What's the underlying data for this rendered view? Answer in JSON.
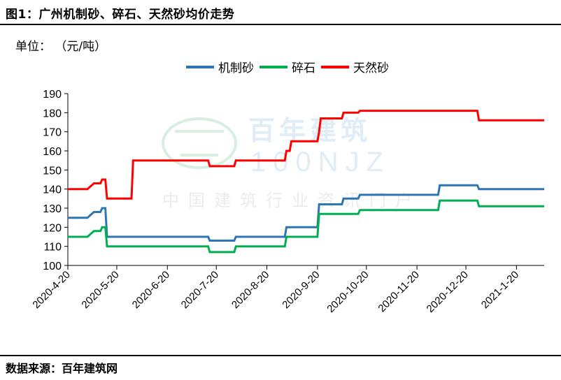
{
  "header": {
    "title": "图1：广州机制砂、碎石、天然砂均价走势"
  },
  "unit_label": "单位：  （元/吨）",
  "footer": {
    "source": "数据来源：百年建筑网"
  },
  "watermark": {
    "logo_text": "百年建筑",
    "code": "100NJZ",
    "subtitle": "中国建筑行业资讯门户"
  },
  "chart_data": {
    "type": "line",
    "xlabel": "",
    "ylabel": "",
    "ylim": [
      100,
      190
    ],
    "yticks": [
      100,
      110,
      120,
      130,
      140,
      150,
      160,
      170,
      180,
      190
    ],
    "xlim": [
      "2020-04-20",
      "2021-02-06"
    ],
    "xticks": [
      "2020-4-20",
      "2020-5-20",
      "2020-6-20",
      "2020-7-20",
      "2020-8-20",
      "2020-9-20",
      "2020-10-20",
      "2020-11-20",
      "2020-12-20",
      "2021-1-20"
    ],
    "grid": false,
    "legend_position": "top-center",
    "series": [
      {
        "name": "机制砂",
        "color": "#2e75b6",
        "points": [
          [
            "2020-04-20",
            125
          ],
          [
            "2020-05-02",
            125
          ],
          [
            "2020-05-06",
            128
          ],
          [
            "2020-05-10",
            128
          ],
          [
            "2020-05-11",
            130
          ],
          [
            "2020-05-13",
            130
          ],
          [
            "2020-05-14",
            115
          ],
          [
            "2020-07-15",
            115
          ],
          [
            "2020-07-16",
            113
          ],
          [
            "2020-07-31",
            113
          ],
          [
            "2020-08-01",
            115
          ],
          [
            "2020-08-31",
            115
          ],
          [
            "2020-09-01",
            120
          ],
          [
            "2020-09-20",
            120
          ],
          [
            "2020-09-21",
            132
          ],
          [
            "2020-10-05",
            132
          ],
          [
            "2020-10-06",
            135
          ],
          [
            "2020-10-15",
            135
          ],
          [
            "2020-10-16",
            137
          ],
          [
            "2020-12-03",
            137
          ],
          [
            "2020-12-04",
            142
          ],
          [
            "2020-12-27",
            142
          ],
          [
            "2020-12-28",
            140
          ],
          [
            "2021-02-06",
            140
          ]
        ]
      },
      {
        "name": "碎石",
        "color": "#00b050",
        "points": [
          [
            "2020-04-20",
            115
          ],
          [
            "2020-05-02",
            115
          ],
          [
            "2020-05-06",
            118
          ],
          [
            "2020-05-10",
            118
          ],
          [
            "2020-05-11",
            120
          ],
          [
            "2020-05-13",
            120
          ],
          [
            "2020-05-14",
            110
          ],
          [
            "2020-07-15",
            110
          ],
          [
            "2020-07-16",
            107
          ],
          [
            "2020-07-31",
            107
          ],
          [
            "2020-08-01",
            110
          ],
          [
            "2020-08-31",
            110
          ],
          [
            "2020-09-01",
            115
          ],
          [
            "2020-09-20",
            115
          ],
          [
            "2020-09-21",
            127
          ],
          [
            "2020-10-15",
            127
          ],
          [
            "2020-10-16",
            129
          ],
          [
            "2020-12-03",
            129
          ],
          [
            "2020-12-04",
            134
          ],
          [
            "2020-12-27",
            134
          ],
          [
            "2020-12-28",
            131
          ],
          [
            "2021-02-06",
            131
          ]
        ]
      },
      {
        "name": "天然砂",
        "color": "#ff0000",
        "points": [
          [
            "2020-04-20",
            140
          ],
          [
            "2020-05-02",
            140
          ],
          [
            "2020-05-06",
            143
          ],
          [
            "2020-05-10",
            143
          ],
          [
            "2020-05-11",
            145
          ],
          [
            "2020-05-13",
            145
          ],
          [
            "2020-05-14",
            135
          ],
          [
            "2020-05-29",
            135
          ],
          [
            "2020-05-30",
            155
          ],
          [
            "2020-07-15",
            155
          ],
          [
            "2020-07-16",
            152
          ],
          [
            "2020-07-31",
            152
          ],
          [
            "2020-08-01",
            155
          ],
          [
            "2020-08-31",
            155
          ],
          [
            "2020-09-01",
            160
          ],
          [
            "2020-09-03",
            160
          ],
          [
            "2020-09-04",
            165
          ],
          [
            "2020-09-20",
            165
          ],
          [
            "2020-09-21",
            170
          ],
          [
            "2020-09-22",
            177
          ],
          [
            "2020-10-05",
            177
          ],
          [
            "2020-10-06",
            180
          ],
          [
            "2020-10-15",
            180
          ],
          [
            "2020-10-16",
            181
          ],
          [
            "2020-12-27",
            181
          ],
          [
            "2020-12-28",
            176
          ],
          [
            "2021-02-06",
            176
          ]
        ]
      }
    ]
  }
}
